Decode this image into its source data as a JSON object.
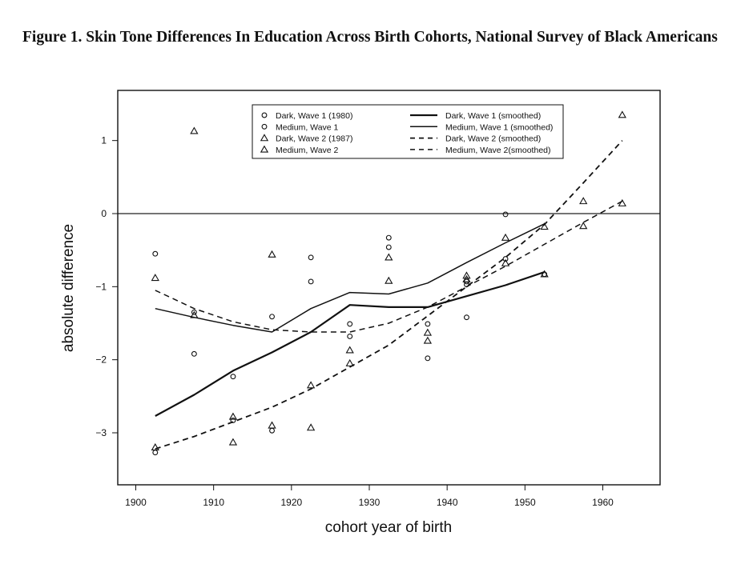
{
  "figure": {
    "title": "Figure 1. Skin Tone Differences In Education Across Birth Cohorts, National Survey of Black Americans"
  },
  "chart_data": {
    "type": "scatter",
    "xlabel": "cohort year of birth",
    "ylabel": "absolute difference",
    "xlim": [
      1897.5,
      1967.5
    ],
    "ylim": [
      -3.7,
      1.65
    ],
    "xticks": [
      1900,
      1910,
      1920,
      1930,
      1940,
      1950,
      1960
    ],
    "yticks": [
      -3,
      -2,
      -1,
      0,
      1
    ],
    "reference_line": 0,
    "grid": false,
    "legend_position": "top",
    "series": [
      {
        "name": "Dark, Wave 1 (1980)",
        "kind": "points",
        "marker": "circle",
        "points": [
          [
            1902.5,
            -3.27
          ],
          [
            1907.5,
            -1.35
          ],
          [
            1912.5,
            -2.83
          ],
          [
            1917.5,
            -2.97
          ],
          [
            1922.5,
            -0.93
          ],
          [
            1927.5,
            -1.51
          ],
          [
            1932.5,
            -0.33
          ],
          [
            1937.5,
            -1.51
          ],
          [
            1942.5,
            -0.93
          ],
          [
            1947.5,
            -0.01
          ],
          [
            1952.5,
            -0.83
          ]
        ]
      },
      {
        "name": "Medium, Wave 1",
        "kind": "points",
        "marker": "circle",
        "points": [
          [
            1902.5,
            -0.55
          ],
          [
            1907.5,
            -1.92
          ],
          [
            1912.5,
            -2.23
          ],
          [
            1917.5,
            -1.41
          ],
          [
            1922.5,
            -0.6
          ],
          [
            1927.5,
            -1.68
          ],
          [
            1932.5,
            -0.46
          ],
          [
            1937.5,
            -1.98
          ],
          [
            1942.5,
            -1.42
          ],
          [
            1942.5,
            -0.97
          ],
          [
            1947.5,
            -0.62
          ]
        ]
      },
      {
        "name": "Dark, Wave 2 (1987)",
        "kind": "points",
        "marker": "triangle",
        "points": [
          [
            1902.5,
            -3.2
          ],
          [
            1907.5,
            -1.39
          ],
          [
            1912.5,
            -2.78
          ],
          [
            1917.5,
            -2.9
          ],
          [
            1922.5,
            -2.35
          ],
          [
            1927.5,
            -1.87
          ],
          [
            1932.5,
            -0.6
          ],
          [
            1937.5,
            -1.63
          ],
          [
            1942.5,
            -0.85
          ],
          [
            1947.5,
            -0.33
          ],
          [
            1952.5,
            -0.83
          ],
          [
            1957.5,
            0.17
          ],
          [
            1962.5,
            1.35
          ]
        ]
      },
      {
        "name": "Medium, Wave 2",
        "kind": "points",
        "marker": "triangle",
        "points": [
          [
            1902.5,
            -0.88
          ],
          [
            1907.5,
            1.13
          ],
          [
            1912.5,
            -3.13
          ],
          [
            1917.5,
            -0.56
          ],
          [
            1922.5,
            -2.93
          ],
          [
            1927.5,
            -2.05
          ],
          [
            1932.5,
            -0.92
          ],
          [
            1937.5,
            -1.74
          ],
          [
            1942.5,
            -0.9
          ],
          [
            1947.5,
            -0.68
          ],
          [
            1952.5,
            -0.18
          ],
          [
            1957.5,
            -0.17
          ],
          [
            1962.5,
            0.14
          ]
        ]
      },
      {
        "name": "Dark, Wave 1 (smoothed)",
        "kind": "line",
        "dash": "solid",
        "width": 2.2,
        "points": [
          [
            1902.5,
            -2.77
          ],
          [
            1907.5,
            -2.48
          ],
          [
            1912.5,
            -2.15
          ],
          [
            1917.5,
            -1.9
          ],
          [
            1922.5,
            -1.62
          ],
          [
            1927.5,
            -1.25
          ],
          [
            1932.5,
            -1.28
          ],
          [
            1937.5,
            -1.28
          ],
          [
            1942.5,
            -1.13
          ],
          [
            1947.5,
            -0.98
          ],
          [
            1952.5,
            -0.8
          ]
        ]
      },
      {
        "name": "Medium, Wave 1 (smoothed)",
        "kind": "line",
        "dash": "solid",
        "width": 1.5,
        "points": [
          [
            1902.5,
            -1.3
          ],
          [
            1907.5,
            -1.42
          ],
          [
            1912.5,
            -1.53
          ],
          [
            1917.5,
            -1.62
          ],
          [
            1922.5,
            -1.3
          ],
          [
            1927.5,
            -1.08
          ],
          [
            1932.5,
            -1.1
          ],
          [
            1937.5,
            -0.95
          ],
          [
            1942.5,
            -0.67
          ],
          [
            1947.5,
            -0.4
          ],
          [
            1952.5,
            -0.14
          ]
        ]
      },
      {
        "name": "Dark, Wave 2 (smoothed)",
        "kind": "line",
        "dash": "dashed",
        "width": 1.8,
        "points": [
          [
            1902.5,
            -3.22
          ],
          [
            1907.5,
            -3.05
          ],
          [
            1912.5,
            -2.85
          ],
          [
            1917.5,
            -2.65
          ],
          [
            1922.5,
            -2.4
          ],
          [
            1927.5,
            -2.1
          ],
          [
            1932.5,
            -1.8
          ],
          [
            1937.5,
            -1.4
          ],
          [
            1942.5,
            -1.0
          ],
          [
            1947.5,
            -0.6
          ],
          [
            1952.5,
            -0.15
          ],
          [
            1957.5,
            0.42
          ],
          [
            1962.5,
            1.0
          ]
        ]
      },
      {
        "name": "Medium, Wave 2(smoothed)",
        "kind": "line",
        "dash": "dashed",
        "width": 1.5,
        "points": [
          [
            1902.5,
            -1.05
          ],
          [
            1907.5,
            -1.3
          ],
          [
            1912.5,
            -1.48
          ],
          [
            1917.5,
            -1.59
          ],
          [
            1922.5,
            -1.62
          ],
          [
            1927.5,
            -1.62
          ],
          [
            1932.5,
            -1.5
          ],
          [
            1937.5,
            -1.28
          ],
          [
            1942.5,
            -1.0
          ],
          [
            1947.5,
            -0.72
          ],
          [
            1952.5,
            -0.42
          ],
          [
            1957.5,
            -0.12
          ],
          [
            1962.5,
            0.17
          ]
        ]
      }
    ]
  }
}
